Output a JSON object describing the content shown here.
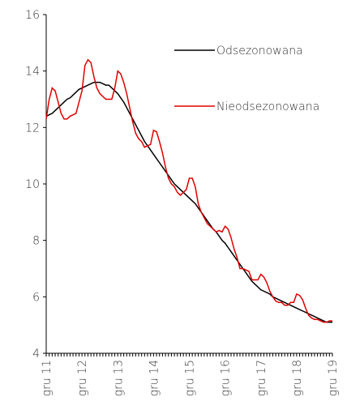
{
  "chart_data": {
    "type": "line",
    "categories": [
      "gru 11",
      null,
      null,
      null,
      null,
      null,
      null,
      null,
      null,
      null,
      null,
      null,
      "gru 12",
      null,
      null,
      null,
      null,
      null,
      null,
      null,
      null,
      null,
      null,
      null,
      "gru 13",
      null,
      null,
      null,
      null,
      null,
      null,
      null,
      null,
      null,
      null,
      null,
      "gru 14",
      null,
      null,
      null,
      null,
      null,
      null,
      null,
      null,
      null,
      null,
      null,
      "gru 15",
      null,
      null,
      null,
      null,
      null,
      null,
      null,
      null,
      null,
      null,
      null,
      "gru 16",
      null,
      null,
      null,
      null,
      null,
      null,
      null,
      null,
      null,
      null,
      null,
      "gru 17",
      null,
      null,
      null,
      null,
      null,
      null,
      null,
      null,
      null,
      null,
      null,
      "gru 18",
      null,
      null,
      null,
      null,
      null,
      null,
      null,
      null,
      null,
      null,
      null,
      "gru 19"
    ],
    "series": [
      {
        "name": "Odsezonowana",
        "color": "#000000",
        "values": [
          12.4,
          12.45,
          12.5,
          12.6,
          12.7,
          12.8,
          12.9,
          13.0,
          13.05,
          13.15,
          13.25,
          13.35,
          13.4,
          13.45,
          13.5,
          13.55,
          13.6,
          13.6,
          13.6,
          13.55,
          13.5,
          13.5,
          13.4,
          13.3,
          13.2,
          13.05,
          12.9,
          12.7,
          12.5,
          12.3,
          12.1,
          11.9,
          11.7,
          11.5,
          11.35,
          11.2,
          11.05,
          10.9,
          10.75,
          10.6,
          10.45,
          10.3,
          10.15,
          10.0,
          9.9,
          9.8,
          9.7,
          9.6,
          9.5,
          9.4,
          9.3,
          9.15,
          9.0,
          8.85,
          8.7,
          8.55,
          8.4,
          8.3,
          8.15,
          8.0,
          7.9,
          7.75,
          7.6,
          7.45,
          7.3,
          7.15,
          7.0,
          6.85,
          6.7,
          6.55,
          6.45,
          6.35,
          6.25,
          6.2,
          6.15,
          6.1,
          6.0,
          5.95,
          5.9,
          5.85,
          5.8,
          5.75,
          5.7,
          5.65,
          5.6,
          5.55,
          5.5,
          5.45,
          5.4,
          5.35,
          5.3,
          5.25,
          5.2,
          5.15,
          5.1,
          5.1,
          5.1
        ]
      },
      {
        "name": "Nieodsezonowana",
        "color": "#e00000",
        "values": [
          12.3,
          13.0,
          13.4,
          13.3,
          12.9,
          12.5,
          12.3,
          12.3,
          12.4,
          12.45,
          12.5,
          12.9,
          13.3,
          14.2,
          14.4,
          14.3,
          13.8,
          13.4,
          13.2,
          13.1,
          13.0,
          13.0,
          13.0,
          13.4,
          14.0,
          13.9,
          13.6,
          13.2,
          12.7,
          12.2,
          11.8,
          11.6,
          11.5,
          11.3,
          11.35,
          11.4,
          11.9,
          11.85,
          11.5,
          11.1,
          10.6,
          10.2,
          10.0,
          9.9,
          9.7,
          9.6,
          9.7,
          9.8,
          10.2,
          10.2,
          9.9,
          9.3,
          9.0,
          8.8,
          8.6,
          8.5,
          8.4,
          8.3,
          8.35,
          8.3,
          8.5,
          8.4,
          8.1,
          7.7,
          7.4,
          7.0,
          7.0,
          6.95,
          6.9,
          6.6,
          6.6,
          6.6,
          6.8,
          6.7,
          6.5,
          6.2,
          6.0,
          5.85,
          5.8,
          5.8,
          5.7,
          5.7,
          5.8,
          5.8,
          6.1,
          6.05,
          5.9,
          5.6,
          5.35,
          5.25,
          5.2,
          5.2,
          5.15,
          5.1,
          5.1,
          5.15,
          5.15
        ]
      }
    ],
    "ylim": [
      4,
      16
    ],
    "yticks": [
      4,
      6,
      8,
      10,
      12,
      14,
      16
    ],
    "grid": false,
    "legend": "upper right"
  }
}
